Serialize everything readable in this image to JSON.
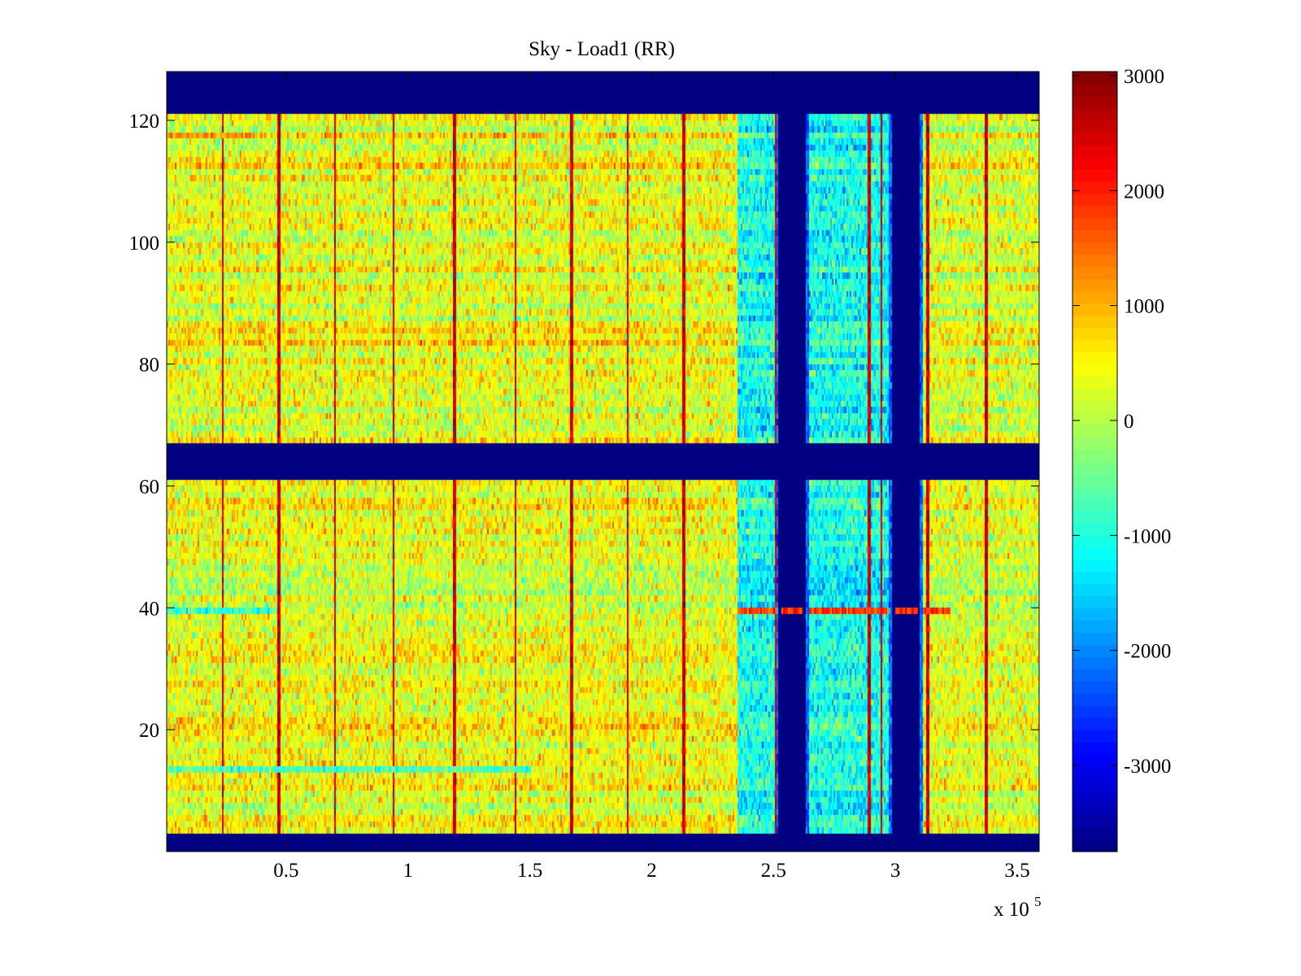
{
  "chart_data": {
    "type": "heatmap",
    "title": "Sky - Load1 (RR)",
    "xlabel": "",
    "ylabel": "",
    "x_exponent_label": "x 10",
    "x_exponent_power": "5",
    "xlim": [
      0.01,
      3.59
    ],
    "ylim": [
      0,
      128
    ],
    "x_unit_scale": 100000,
    "x_ticks": [
      0.5,
      1,
      1.5,
      2,
      2.5,
      3,
      3.5
    ],
    "x_tick_labels": [
      "0.5",
      "1",
      "1.5",
      "2",
      "2.5",
      "3",
      "3.5"
    ],
    "y_ticks": [
      20,
      40,
      60,
      80,
      100,
      120
    ],
    "y_tick_labels": [
      "20",
      "40",
      "60",
      "80",
      "100",
      "120"
    ],
    "grid": false,
    "colormap": "jet",
    "color_range": [
      -3750,
      3035
    ],
    "colorbar": {
      "ticks": [
        3000,
        2000,
        1000,
        0,
        -1000,
        -2000,
        -3000
      ],
      "tick_labels": [
        "3000",
        "2000",
        "1000",
        "0",
        "-1000",
        "-2000",
        "-3000"
      ],
      "placement": "right"
    },
    "masked_rows": [
      {
        "from": 0,
        "to": 3
      },
      {
        "from": 61,
        "to": 67
      },
      {
        "from": 121,
        "to": 128
      }
    ],
    "masked_columns": [
      {
        "from": 2.52,
        "to": 2.63
      },
      {
        "from": 2.985,
        "to": 3.1
      }
    ],
    "regions": [
      {
        "name": "nominal",
        "from": 0.01,
        "to": 2.35,
        "typical_value": 350
      },
      {
        "name": "low",
        "from": 2.35,
        "to": 3.11,
        "typical_value": -1100
      },
      {
        "name": "nominal",
        "from": 3.11,
        "to": 3.59,
        "typical_value": 250
      }
    ],
    "hot_stripes_x": [
      0.24,
      0.47,
      0.7,
      0.94,
      1.19,
      1.44,
      1.67,
      1.9,
      2.13,
      2.51,
      2.89,
      2.94,
      3.13,
      3.37
    ],
    "hot_stripe_value": 2600,
    "annotated_rows": [
      {
        "row": 39,
        "x_from": 0.01,
        "x_to": 0.46,
        "value": -900
      },
      {
        "row": 39,
        "x_from": 2.35,
        "x_to": 3.22,
        "value": 1800
      },
      {
        "row": 13,
        "x_from": 0.01,
        "x_to": 1.5,
        "value": -700
      },
      {
        "row": 117,
        "x_from": 0.01,
        "x_to": 0.4,
        "value": 1200
      }
    ]
  }
}
